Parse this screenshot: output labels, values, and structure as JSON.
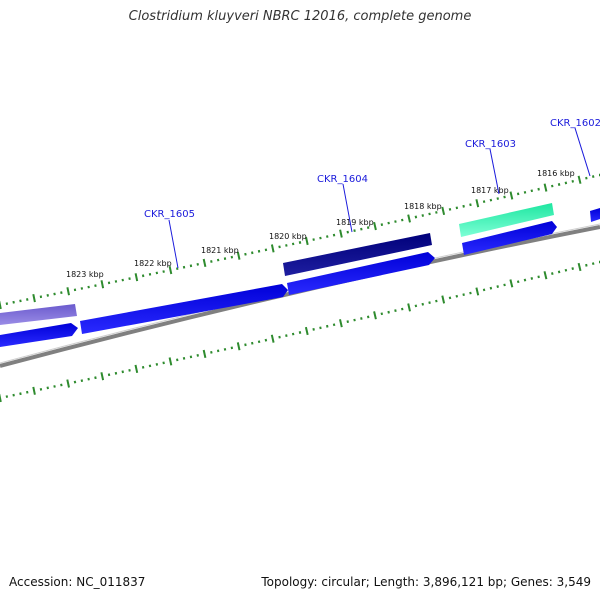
{
  "title": "Clostridium kluyveri NBRC 12016, complete genome",
  "footer": {
    "accession": "Accession: NC_011837",
    "summary": "Topology: circular; Length: 3,896,121 bp; Genes: 3,549"
  },
  "colors": {
    "backbone": "#808080",
    "tick": "#2e8b2e",
    "cds_reverse": "#0000e6",
    "gene_label": "#1a1adb"
  },
  "kbp_labels": [
    "1823 kbp",
    "1822 kbp",
    "1821 kbp",
    "1820 kbp",
    "1819 kbp",
    "1818 kbp",
    "1817 kbp",
    "1816 kbp"
  ],
  "genes": [
    {
      "label": "CKR_1605",
      "color": "#0000e6"
    },
    {
      "label": "CKR_1604",
      "color": "#00007a"
    },
    {
      "label": "CKR_1603",
      "color": "#33e6a8"
    },
    {
      "label": "CKR_1602",
      "color": "#0000e6"
    }
  ]
}
